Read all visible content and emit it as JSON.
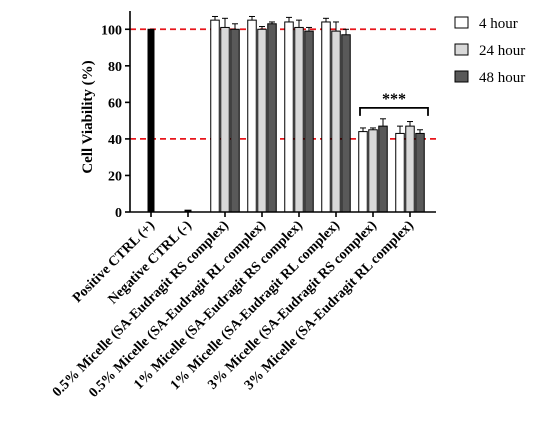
{
  "chart_data": {
    "type": "bar",
    "ylabel": "Cell Viability (%)",
    "ylim": [
      0,
      110
    ],
    "yticks": [
      0,
      20,
      40,
      60,
      80,
      100
    ],
    "categories": [
      "Positive CTRL (+)",
      "Negative CTRL (-)",
      "0.5% Micelle (SA-Eudragit RS complex)",
      "0.5% Micelle (SA-Eudragit RL complex)",
      "1% Micelle (SA-Eudragit RS complex)",
      "1% Micelle (SA-Eudragit RL complex)",
      "3% Micelle (SA-Eudragit RS complex)",
      "3% Micelle (SA-Eudragit RL complex)"
    ],
    "control_bars": [
      {
        "category": "Positive CTRL (+)",
        "value": 100
      },
      {
        "category": "Negative CTRL (-)",
        "value": 1
      }
    ],
    "series": [
      {
        "name": "4 hour",
        "color": "#ffffff",
        "values": [
          null,
          null,
          105,
          105,
          104,
          104,
          44,
          43
        ],
        "errors": [
          null,
          null,
          2,
          2,
          2.5,
          2,
          2,
          4
        ]
      },
      {
        "name": "24 hour",
        "color": "#d9d9d9",
        "values": [
          null,
          null,
          101,
          100,
          101,
          99,
          45,
          47
        ],
        "errors": [
          null,
          null,
          5,
          1.5,
          4,
          5,
          1,
          2.5
        ]
      },
      {
        "name": "48 hour",
        "color": "#595959",
        "values": [
          null,
          null,
          100,
          103,
          99,
          97,
          47,
          43
        ],
        "errors": [
          null,
          null,
          3,
          1,
          2,
          3,
          4,
          2
        ]
      }
    ],
    "reference_lines": [
      100,
      40
    ],
    "reference_line_color": "#e8161b",
    "significance": {
      "label": "***",
      "from_category": 6,
      "to_category": 7,
      "y": 57
    },
    "legend_position": "top-right",
    "grid": false
  }
}
